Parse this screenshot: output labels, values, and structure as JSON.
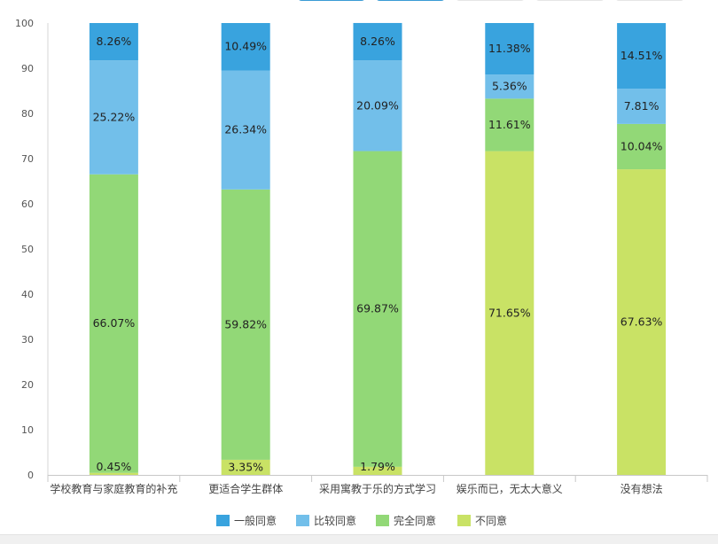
{
  "chart_data": {
    "type": "bar",
    "stacked": true,
    "orientation": "vertical",
    "categories": [
      "学校教育与家庭教育的补充",
      "更适合学生群体",
      "采用寓教于乐的方式学习",
      "娱乐而已，无太大意义",
      "没有想法"
    ],
    "series": [
      {
        "name": "不同意",
        "color": "#c9e265",
        "values": [
          0.45,
          3.35,
          1.79,
          71.65,
          67.63
        ]
      },
      {
        "name": "完全同意",
        "color": "#92d877",
        "values": [
          66.07,
          59.82,
          69.87,
          11.61,
          10.04
        ]
      },
      {
        "name": "比较同意",
        "color": "#72bfea",
        "values": [
          25.22,
          26.34,
          20.09,
          5.36,
          7.81
        ]
      },
      {
        "name": "一般同意",
        "color": "#39a3de",
        "values": [
          8.26,
          10.49,
          8.26,
          11.38,
          14.51
        ]
      }
    ],
    "data_labels": [
      [
        "0.45%",
        "3.35%",
        "1.79%",
        "71.65%",
        "67.63%"
      ],
      [
        "66.07%",
        "59.82%",
        "69.87%",
        "11.61%",
        "10.04%"
      ],
      [
        "25.22%",
        "26.34%",
        "20.09%",
        "5.36%",
        "7.81%"
      ],
      [
        "8.26%",
        "10.49%",
        "8.26%",
        "11.38%",
        "14.51%"
      ]
    ],
    "legend_order": [
      "一般同意",
      "比较同意",
      "完全同意",
      "不同意"
    ],
    "yticks": [
      "0",
      "10",
      "20",
      "30",
      "40",
      "50",
      "60",
      "70",
      "80",
      "90",
      "100"
    ],
    "ylim": [
      0,
      100
    ],
    "grid": false,
    "legend_position": "bottom"
  }
}
